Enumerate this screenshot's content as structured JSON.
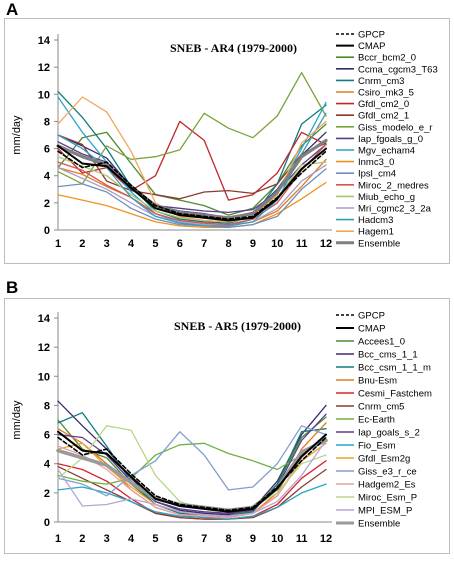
{
  "panels": [
    {
      "letter": "A"
    },
    {
      "letter": "B"
    }
  ],
  "chart_data": [
    {
      "type": "line",
      "title": "SNEB - AR4 (1979-2000)",
      "xlabel": "",
      "ylabel": "mm/day",
      "x": [
        1,
        2,
        3,
        4,
        5,
        6,
        7,
        8,
        9,
        10,
        11,
        12
      ],
      "xlim": [
        1,
        12
      ],
      "ylim": [
        0,
        14
      ],
      "yticks": [
        0,
        2,
        4,
        6,
        8,
        10,
        12,
        14
      ],
      "grid": false,
      "legend_position": "right",
      "series": [
        {
          "name": "GPCP",
          "color": "#000000",
          "dash": true,
          "width": 1.6,
          "values": [
            5.8,
            4.6,
            5.0,
            3.3,
            1.8,
            1.2,
            1.0,
            0.8,
            1.0,
            2.4,
            4.2,
            5.8
          ]
        },
        {
          "name": "CMAP",
          "color": "#000000",
          "width": 2.0,
          "values": [
            6.2,
            4.9,
            4.7,
            3.1,
            1.6,
            1.1,
            0.9,
            0.7,
            0.9,
            2.3,
            4.5,
            6.0
          ]
        },
        {
          "name": "Bccr_bcm2_0",
          "color": "#4e8a2e",
          "values": [
            4.6,
            6.8,
            7.2,
            4.9,
            2.6,
            2.2,
            1.8,
            1.1,
            1.6,
            3.4,
            6.2,
            7.8
          ]
        },
        {
          "name": "Ccma_cgcm3_T63",
          "color": "#2e2f6e",
          "values": [
            7.0,
            6.2,
            5.3,
            3.2,
            1.8,
            1.4,
            1.2,
            0.9,
            1.3,
            3.0,
            5.5,
            7.2
          ]
        },
        {
          "name": "Cnrm_cm3",
          "color": "#127a7a",
          "values": [
            10.2,
            8.3,
            6.0,
            3.2,
            1.4,
            0.8,
            0.6,
            0.5,
            1.0,
            3.4,
            7.8,
            9.2
          ]
        },
        {
          "name": "Csiro_mk3_5",
          "color": "#e07b1d",
          "values": [
            4.6,
            4.1,
            3.2,
            2.4,
            1.2,
            0.6,
            0.4,
            0.3,
            0.6,
            1.4,
            3.2,
            5.2
          ]
        },
        {
          "name": "Gfdl_cm2_0",
          "color": "#c0262b",
          "values": [
            6.0,
            4.2,
            4.6,
            2.9,
            4.0,
            8.0,
            6.6,
            2.2,
            2.6,
            4.2,
            7.2,
            6.3
          ]
        },
        {
          "name": "Gfdl_cm2_1",
          "color": "#8c3b2e",
          "values": [
            7.0,
            6.3,
            3.6,
            2.9,
            2.6,
            2.3,
            2.8,
            2.9,
            2.7,
            3.4,
            5.6,
            6.4
          ]
        },
        {
          "name": "Giss_modelo_e_r",
          "color": "#7aa33b",
          "values": [
            4.3,
            3.4,
            6.2,
            5.2,
            5.4,
            5.9,
            8.6,
            7.5,
            6.8,
            8.4,
            11.6,
            8.4
          ]
        },
        {
          "name": "Iap_fgoals_g_0",
          "color": "#5a3e8c",
          "values": [
            6.5,
            5.6,
            5.0,
            3.0,
            1.8,
            1.6,
            1.4,
            1.3,
            1.5,
            2.8,
            4.8,
            6.3
          ]
        },
        {
          "name": "Mgv_echam4",
          "color": "#2aa4c9",
          "values": [
            9.8,
            7.2,
            5.0,
            2.8,
            1.2,
            0.6,
            0.4,
            0.3,
            0.8,
            2.8,
            6.0,
            9.4
          ]
        },
        {
          "name": "Inmc3_0",
          "color": "#f0921e",
          "values": [
            2.6,
            2.2,
            1.8,
            1.2,
            0.6,
            0.3,
            0.2,
            0.2,
            0.4,
            1.2,
            2.3,
            3.5
          ]
        },
        {
          "name": "Ipsl_cm4",
          "color": "#6f8fbf",
          "values": [
            3.2,
            3.4,
            2.8,
            1.6,
            0.8,
            0.4,
            0.3,
            0.2,
            0.4,
            1.0,
            3.0,
            4.5
          ]
        },
        {
          "name": "Miroc_2_medres",
          "color": "#d9534f",
          "values": [
            5.0,
            4.4,
            3.3,
            2.4,
            1.2,
            0.7,
            0.5,
            0.4,
            0.8,
            2.0,
            4.4,
            6.3
          ]
        },
        {
          "name": "Miub_echo_g",
          "color": "#a8c66c",
          "values": [
            5.4,
            4.7,
            4.0,
            2.6,
            1.4,
            0.9,
            0.7,
            0.6,
            0.9,
            2.4,
            4.8,
            5.0
          ]
        },
        {
          "name": "Mri_cgmc2_3_2a",
          "color": "#a99cc9",
          "values": [
            4.6,
            3.8,
            3.0,
            2.0,
            1.0,
            0.6,
            0.4,
            0.3,
            0.6,
            1.6,
            3.6,
            4.8
          ]
        },
        {
          "name": "Hadcm3",
          "color": "#3a9bc1",
          "values": [
            7.0,
            6.0,
            4.6,
            2.4,
            1.0,
            0.5,
            0.3,
            0.3,
            0.6,
            2.2,
            5.6,
            8.6
          ]
        },
        {
          "name": "Hagem1",
          "color": "#f2a65a",
          "values": [
            7.8,
            9.8,
            8.7,
            5.8,
            2.0,
            1.0,
            0.7,
            0.6,
            1.0,
            2.6,
            6.4,
            8.0
          ]
        },
        {
          "name": "Ensemble",
          "color": "#7f7f7f",
          "width": 3.2,
          "values": [
            6.2,
            5.4,
            4.8,
            3.2,
            1.8,
            1.3,
            1.1,
            0.9,
            1.2,
            2.8,
            5.4,
            6.6
          ]
        }
      ]
    },
    {
      "type": "line",
      "title": "SNEB - AR5 (1979-2000)",
      "xlabel": "",
      "ylabel": "mm/day",
      "x": [
        1,
        2,
        3,
        4,
        5,
        6,
        7,
        8,
        9,
        10,
        11,
        12
      ],
      "xlim": [
        1,
        12
      ],
      "ylim": [
        0,
        14
      ],
      "yticks": [
        0,
        2,
        4,
        6,
        8,
        10,
        12,
        14
      ],
      "grid": false,
      "legend_position": "right",
      "series": [
        {
          "name": "GPCP",
          "color": "#000000",
          "dash": true,
          "width": 1.6,
          "values": [
            5.8,
            4.6,
            5.0,
            3.3,
            1.8,
            1.2,
            1.0,
            0.8,
            1.0,
            2.4,
            4.2,
            5.8
          ]
        },
        {
          "name": "CMAP",
          "color": "#000000",
          "width": 2.0,
          "values": [
            6.2,
            4.9,
            4.7,
            3.1,
            1.6,
            1.1,
            0.9,
            0.7,
            0.9,
            2.3,
            4.5,
            6.0
          ]
        },
        {
          "name": "Accees1_0",
          "color": "#4e8a2e",
          "values": [
            7.0,
            5.0,
            4.4,
            2.6,
            1.2,
            0.7,
            0.5,
            0.4,
            0.8,
            2.6,
            5.8,
            7.2
          ]
        },
        {
          "name": "Bcc_cms_1_1",
          "color": "#3b2a6e",
          "values": [
            8.3,
            6.6,
            5.0,
            3.0,
            1.4,
            0.8,
            0.6,
            0.5,
            0.9,
            2.8,
            6.0,
            8.0
          ]
        },
        {
          "name": "Bcc_csm_1_1_m",
          "color": "#127a7a",
          "values": [
            6.8,
            7.5,
            5.2,
            2.8,
            1.2,
            0.6,
            0.5,
            0.4,
            0.7,
            2.6,
            6.2,
            6.4
          ]
        },
        {
          "name": "Bnu-Esm",
          "color": "#e07b1d",
          "values": [
            6.4,
            5.4,
            4.0,
            2.2,
            1.0,
            0.5,
            0.3,
            0.3,
            0.6,
            2.0,
            5.0,
            6.8
          ]
        },
        {
          "name": "Cesmi_Fastchem",
          "color": "#d6262b",
          "values": [
            4.0,
            3.6,
            2.8,
            1.6,
            0.6,
            0.3,
            0.2,
            0.2,
            0.4,
            1.2,
            3.0,
            4.2
          ]
        },
        {
          "name": "Cnrm_cm5",
          "color": "#8c3b2e",
          "values": [
            3.8,
            3.0,
            2.2,
            1.4,
            0.6,
            0.3,
            0.2,
            0.2,
            0.3,
            1.0,
            2.4,
            3.6
          ]
        },
        {
          "name": "Ec-Earth",
          "color": "#6fb043",
          "values": [
            3.2,
            2.8,
            2.6,
            3.0,
            4.6,
            5.3,
            5.4,
            4.7,
            4.2,
            3.6,
            4.6,
            5.8
          ]
        },
        {
          "name": "Iap_goals_s_2",
          "color": "#5a3e8c",
          "values": [
            6.0,
            5.8,
            4.6,
            2.8,
            1.4,
            0.9,
            0.7,
            0.6,
            0.8,
            2.4,
            5.6,
            7.4
          ]
        },
        {
          "name": "Fio_Esm",
          "color": "#2aa4c9",
          "values": [
            2.2,
            2.4,
            2.0,
            1.4,
            0.7,
            0.4,
            0.3,
            0.2,
            0.4,
            1.0,
            2.0,
            2.6
          ]
        },
        {
          "name": "Gfdl_Esm2g",
          "color": "#f0a030",
          "values": [
            5.0,
            5.4,
            3.8,
            2.4,
            1.2,
            0.7,
            0.5,
            0.4,
            0.6,
            1.8,
            4.2,
            5.4
          ]
        },
        {
          "name": "Giss_e3_r_ce",
          "color": "#7f9fcf",
          "values": [
            3.0,
            2.6,
            1.8,
            3.2,
            4.2,
            6.2,
            4.6,
            2.2,
            2.4,
            4.0,
            6.6,
            6.0
          ]
        },
        {
          "name": "Hadgem2_Es",
          "color": "#e8a0a0",
          "values": [
            5.2,
            4.6,
            3.6,
            2.2,
            1.0,
            0.5,
            0.4,
            0.3,
            0.6,
            1.8,
            4.4,
            6.0
          ]
        },
        {
          "name": "Miroc_Esm_P",
          "color": "#b8d68a",
          "values": [
            3.0,
            4.4,
            6.6,
            6.3,
            3.2,
            1.4,
            0.9,
            0.7,
            1.0,
            2.0,
            4.0,
            4.6
          ]
        },
        {
          "name": "MPI_ESM_P",
          "color": "#b3a6d6",
          "values": [
            3.6,
            1.1,
            1.2,
            1.6,
            1.2,
            0.7,
            0.5,
            0.4,
            0.6,
            1.4,
            3.2,
            5.6
          ]
        },
        {
          "name": "Ensemble",
          "color": "#9a9a9a",
          "width": 3.6,
          "values": [
            4.9,
            4.4,
            3.9,
            2.7,
            1.6,
            1.2,
            1.0,
            0.8,
            1.0,
            2.3,
            4.8,
            5.6
          ]
        }
      ]
    }
  ]
}
